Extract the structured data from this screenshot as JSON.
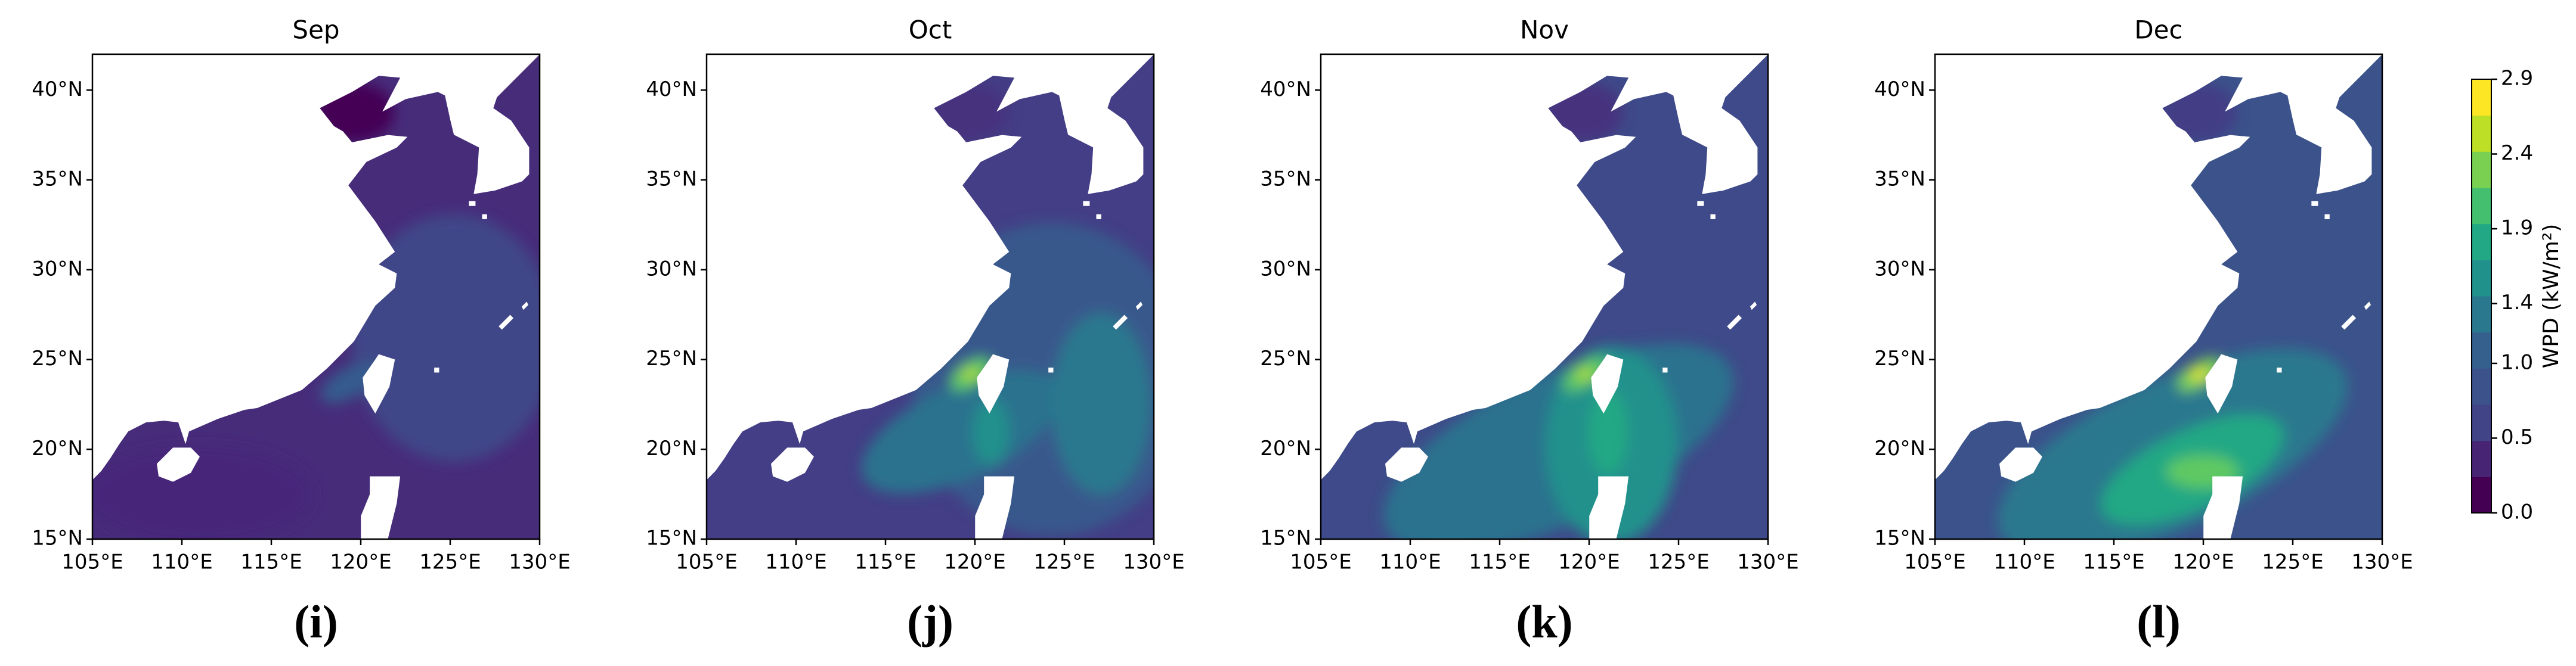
{
  "chart_data": [
    {
      "type": "map",
      "title": "Sep",
      "caption": "(i)",
      "xlim": [
        105,
        130
      ],
      "ylim": [
        15,
        42
      ],
      "xticks": [
        {
          "value": 105,
          "label": "105°E"
        },
        {
          "value": 110,
          "label": "110°E"
        },
        {
          "value": 115,
          "label": "115°E"
        },
        {
          "value": 120,
          "label": "120°E"
        },
        {
          "value": 125,
          "label": "125°E"
        },
        {
          "value": 130,
          "label": "130°E"
        }
      ],
      "yticks": [
        {
          "value": 15,
          "label": "15°N"
        },
        {
          "value": 20,
          "label": "20°N"
        },
        {
          "value": 25,
          "label": "25°N"
        },
        {
          "value": 30,
          "label": "30°N"
        },
        {
          "value": 35,
          "label": "35°N"
        },
        {
          "value": 40,
          "label": "40°N"
        }
      ]
    },
    {
      "type": "map",
      "title": "Oct",
      "caption": "(j)",
      "xlim": [
        105,
        130
      ],
      "ylim": [
        15,
        42
      ],
      "xticks": [
        {
          "value": 105,
          "label": "105°E"
        },
        {
          "value": 110,
          "label": "110°E"
        },
        {
          "value": 115,
          "label": "115°E"
        },
        {
          "value": 120,
          "label": "120°E"
        },
        {
          "value": 125,
          "label": "125°E"
        },
        {
          "value": 130,
          "label": "130°E"
        }
      ],
      "yticks": [
        {
          "value": 15,
          "label": "15°N"
        },
        {
          "value": 20,
          "label": "20°N"
        },
        {
          "value": 25,
          "label": "25°N"
        },
        {
          "value": 30,
          "label": "30°N"
        },
        {
          "value": 35,
          "label": "35°N"
        },
        {
          "value": 40,
          "label": "40°N"
        }
      ]
    },
    {
      "type": "map",
      "title": "Nov",
      "caption": "(k)",
      "xlim": [
        105,
        130
      ],
      "ylim": [
        15,
        42
      ],
      "xticks": [
        {
          "value": 105,
          "label": "105°E"
        },
        {
          "value": 110,
          "label": "110°E"
        },
        {
          "value": 115,
          "label": "115°E"
        },
        {
          "value": 120,
          "label": "120°E"
        },
        {
          "value": 125,
          "label": "125°E"
        },
        {
          "value": 130,
          "label": "130°E"
        }
      ],
      "yticks": [
        {
          "value": 15,
          "label": "15°N"
        },
        {
          "value": 20,
          "label": "20°N"
        },
        {
          "value": 25,
          "label": "25°N"
        },
        {
          "value": 30,
          "label": "30°N"
        },
        {
          "value": 35,
          "label": "35°N"
        },
        {
          "value": 40,
          "label": "40°N"
        }
      ]
    },
    {
      "type": "map",
      "title": "Dec",
      "caption": "(l)",
      "xlim": [
        105,
        130
      ],
      "ylim": [
        15,
        42
      ],
      "xticks": [
        {
          "value": 105,
          "label": "105°E"
        },
        {
          "value": 110,
          "label": "110°E"
        },
        {
          "value": 115,
          "label": "115°E"
        },
        {
          "value": 120,
          "label": "120°E"
        },
        {
          "value": 125,
          "label": "125°E"
        },
        {
          "value": 130,
          "label": "130°E"
        }
      ],
      "yticks": [
        {
          "value": 15,
          "label": "15°N"
        },
        {
          "value": 20,
          "label": "20°N"
        },
        {
          "value": 25,
          "label": "25°N"
        },
        {
          "value": 30,
          "label": "30°N"
        },
        {
          "value": 35,
          "label": "35°N"
        },
        {
          "value": 40,
          "label": "40°N"
        }
      ]
    },
    {
      "type": "colorbar",
      "label": "WPD (kW/m²)",
      "ylim": [
        0,
        2.9
      ],
      "yticks": [
        {
          "value": 0,
          "label": "0.0"
        },
        0.5,
        {
          "value": 1,
          "label": "1.0"
        },
        1.4,
        1.9,
        2.4,
        2.9
      ],
      "colors": [
        "#440154",
        "#482475",
        "#414487",
        "#3b528b",
        "#355f8d",
        "#2a788e",
        "#21918c",
        "#22a884",
        "#44bf70",
        "#7ad151",
        "#bddf26",
        "#fde725"
      ]
    }
  ]
}
